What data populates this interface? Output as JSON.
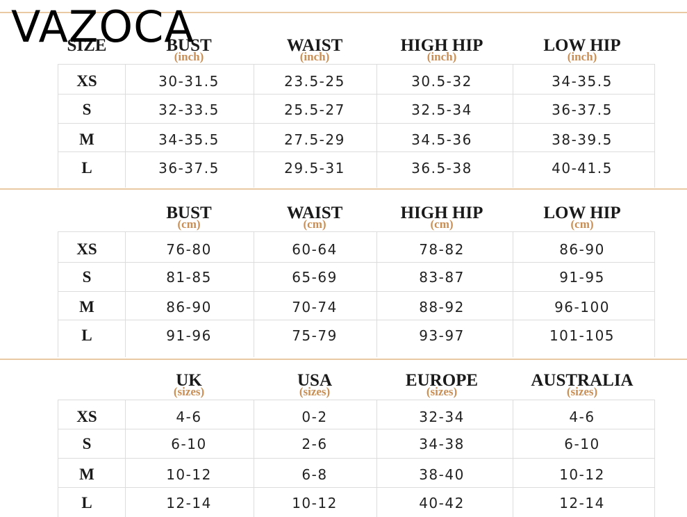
{
  "brand": "VAZOCA",
  "tables": [
    {
      "size_heading": "SIZE",
      "columns": [
        {
          "label": "BUST",
          "unit": "(inch)"
        },
        {
          "label": "WAIST",
          "unit": "(inch)"
        },
        {
          "label": "HIGH HIP",
          "unit": "(inch)"
        },
        {
          "label": "LOW HIP",
          "unit": "(inch)"
        }
      ],
      "rows": [
        [
          "XS",
          "30-31.5",
          "23.5-25",
          "30.5-32",
          "34-35.5"
        ],
        [
          "S",
          "32-33.5",
          "25.5-27",
          "32.5-34",
          "36-37.5"
        ],
        [
          "M",
          "34-35.5",
          "27.5-29",
          "34.5-36",
          "38-39.5"
        ],
        [
          "L",
          "36-37.5",
          "29.5-31",
          "36.5-38",
          "40-41.5"
        ]
      ]
    },
    {
      "columns": [
        {
          "label": "BUST",
          "unit": "(cm)"
        },
        {
          "label": "WAIST",
          "unit": "(cm)"
        },
        {
          "label": "HIGH HIP",
          "unit": "(cm)"
        },
        {
          "label": "LOW HIP",
          "unit": "(cm)"
        }
      ],
      "rows": [
        [
          "XS",
          "76-80",
          "60-64",
          "78-82",
          "86-90"
        ],
        [
          "S",
          "81-85",
          "65-69",
          "83-87",
          "91-95"
        ],
        [
          "M",
          "86-90",
          "70-74",
          "88-92",
          "96-100"
        ],
        [
          "L",
          "91-96",
          "75-79",
          "93-97",
          "101-105"
        ]
      ]
    },
    {
      "columns": [
        {
          "label": "UK",
          "unit": "(sizes)"
        },
        {
          "label": "USA",
          "unit": "(sizes)"
        },
        {
          "label": "EUROPE",
          "unit": "(sizes)"
        },
        {
          "label": "AUSTRALIA",
          "unit": "(sizes)"
        }
      ],
      "rows": [
        [
          "XS",
          "4-6",
          "0-2",
          "32-34",
          "4-6"
        ],
        [
          "S",
          "6-10",
          "2-6",
          "34-38",
          "6-10"
        ],
        [
          "M",
          "10-12",
          "6-8",
          "38-40",
          "10-12"
        ],
        [
          "L",
          "12-14",
          "10-12",
          "40-42",
          "12-14"
        ]
      ]
    }
  ]
}
